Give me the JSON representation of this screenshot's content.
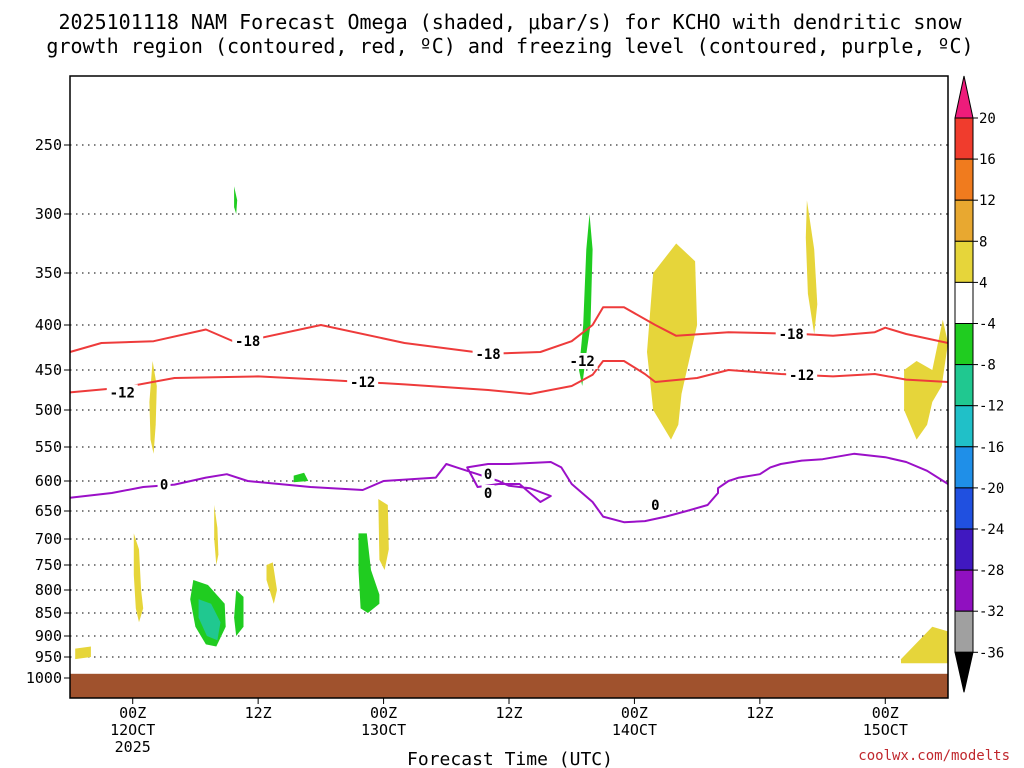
{
  "chart_data": {
    "type": "heatmap",
    "title_line1": "2025101118 NAM Forecast Omega (shaded, μbar/s) for KCHO with dendritic snow",
    "title_line2": "growth region (contoured, red, ºC) and freezing level (contoured, purple, ºC)",
    "xlabel": "Forecast Time (UTC)",
    "credit": "coolwx.com/modelts",
    "y_axis": {
      "unit": "hPa",
      "range": [
        1000,
        200
      ],
      "ticks": [
        250,
        300,
        350,
        400,
        450,
        500,
        550,
        600,
        650,
        700,
        750,
        800,
        850,
        900,
        950,
        1000
      ],
      "tick_labels": [
        "250",
        "300",
        "350",
        "400",
        "450",
        "500",
        "550",
        "600",
        "650",
        "700",
        "750",
        "800",
        "850",
        "900",
        "950",
        "1000"
      ]
    },
    "x_axis": {
      "unit": "forecast hour",
      "range": [
        0,
        84
      ],
      "ticks": [
        6,
        18,
        30,
        42,
        54,
        66,
        78
      ],
      "tick_labels": [
        [
          "00Z",
          "12OCT",
          "2025"
        ],
        [
          "12Z"
        ],
        [
          "00Z",
          "13OCT"
        ],
        [
          "12Z"
        ],
        [
          "00Z",
          "14OCT"
        ],
        [
          "12Z"
        ],
        [
          "00Z",
          "15OCT"
        ]
      ]
    },
    "colorbar": {
      "labels": [
        "20",
        "16",
        "12",
        "8",
        "4",
        "-4",
        "-8",
        "-12",
        "-16",
        "-20",
        "-24",
        "-28",
        "-32",
        "-36"
      ],
      "colors": [
        "#ee1c7b",
        "#f03c2d",
        "#f07b1e",
        "#e8a830",
        "#e6d53a",
        "#ffffff",
        "#20cc20",
        "#20c890",
        "#20c0c8",
        "#1f8fe8",
        "#2050e0",
        "#4018c0",
        "#9010c0",
        "#a0a0a0",
        "#000000"
      ]
    },
    "contours": [
      {
        "label": "-18",
        "color": "#ee3b3b",
        "kind": "dendritic",
        "points": [
          [
            0,
            430
          ],
          [
            3,
            420
          ],
          [
            8,
            418
          ],
          [
            13,
            405
          ],
          [
            16,
            420
          ],
          [
            24,
            400
          ],
          [
            32,
            420
          ],
          [
            40,
            432
          ],
          [
            45,
            430
          ],
          [
            48,
            418
          ],
          [
            50,
            400
          ],
          [
            51,
            383
          ],
          [
            53,
            383
          ],
          [
            56,
            400
          ],
          [
            58,
            412
          ],
          [
            63,
            408
          ],
          [
            70,
            410
          ],
          [
            73,
            412
          ],
          [
            77,
            408
          ],
          [
            78,
            403
          ],
          [
            80,
            410
          ],
          [
            84,
            420
          ]
        ],
        "label_at": [
          [
            17,
            418
          ],
          [
            40,
            432
          ],
          [
            69,
            410
          ]
        ]
      },
      {
        "label": "-12",
        "color": "#ee3b3b",
        "kind": "dendritic",
        "points": [
          [
            0,
            478
          ],
          [
            5,
            472
          ],
          [
            10,
            460
          ],
          [
            18,
            458
          ],
          [
            24,
            462
          ],
          [
            32,
            468
          ],
          [
            40,
            475
          ],
          [
            44,
            480
          ],
          [
            48,
            470
          ],
          [
            50,
            456
          ],
          [
            51,
            440
          ],
          [
            53,
            440
          ],
          [
            55,
            455
          ],
          [
            56,
            465
          ],
          [
            60,
            460
          ],
          [
            63,
            450
          ],
          [
            68,
            455
          ],
          [
            73,
            458
          ],
          [
            77,
            455
          ],
          [
            80,
            462
          ],
          [
            84,
            465
          ]
        ],
        "label_at": [
          [
            5,
            478
          ],
          [
            28,
            465
          ],
          [
            49,
            440
          ],
          [
            70,
            456
          ]
        ]
      },
      {
        "label": "0",
        "color": "#9b10c8",
        "kind": "freezing",
        "points": [
          [
            0,
            628
          ],
          [
            4,
            620
          ],
          [
            7,
            610
          ],
          [
            10,
            606
          ],
          [
            13,
            595
          ],
          [
            15,
            590
          ],
          [
            17,
            600
          ],
          [
            20,
            605
          ],
          [
            23,
            610
          ],
          [
            28,
            615
          ],
          [
            30,
            600
          ],
          [
            35,
            595
          ],
          [
            36,
            575
          ],
          [
            37,
            580
          ],
          [
            39,
            590
          ],
          [
            41,
            600
          ],
          [
            42,
            608
          ],
          [
            44,
            612
          ],
          [
            46,
            625
          ],
          [
            45,
            635
          ],
          [
            44,
            620
          ],
          [
            43,
            605
          ],
          [
            41,
            605
          ],
          [
            39,
            610
          ],
          [
            38,
            580
          ],
          [
            40,
            575
          ],
          [
            42,
            575
          ],
          [
            46,
            572
          ],
          [
            47,
            580
          ],
          [
            48,
            605
          ],
          [
            50,
            635
          ],
          [
            51,
            660
          ],
          [
            53,
            670
          ],
          [
            55,
            668
          ],
          [
            57,
            660
          ],
          [
            59,
            650
          ],
          [
            61,
            640
          ],
          [
            62,
            620
          ],
          [
            62,
            612
          ],
          [
            63,
            600
          ],
          [
            64,
            595
          ],
          [
            66,
            590
          ],
          [
            67,
            580
          ],
          [
            68,
            575
          ],
          [
            70,
            570
          ],
          [
            72,
            568
          ],
          [
            75,
            560
          ],
          [
            78,
            565
          ],
          [
            80,
            572
          ],
          [
            82,
            585
          ],
          [
            84,
            605
          ]
        ],
        "label_at": [
          [
            9,
            606
          ],
          [
            40,
            590
          ],
          [
            40,
            620
          ],
          [
            56,
            640
          ]
        ]
      }
    ],
    "shaded_regions": [
      {
        "sign": "positive",
        "level": "4 to 8",
        "color": "#e6d53a",
        "points": [
          [
            7.9,
            440
          ],
          [
            8.3,
            470
          ],
          [
            8.2,
            520
          ],
          [
            8.0,
            560
          ],
          [
            7.7,
            540
          ],
          [
            7.6,
            490
          ]
        ]
      },
      {
        "sign": "positive",
        "level": "4 to 8",
        "color": "#e6d53a",
        "points": [
          [
            6.1,
            690
          ],
          [
            6.6,
            720
          ],
          [
            6.8,
            800
          ],
          [
            7.0,
            840
          ],
          [
            6.6,
            870
          ],
          [
            6.3,
            840
          ],
          [
            6.1,
            770
          ]
        ]
      },
      {
        "sign": "positive",
        "level": "4 to 8",
        "color": "#e6d53a",
        "points": [
          [
            0.5,
            930
          ],
          [
            2.0,
            925
          ],
          [
            2.0,
            950
          ],
          [
            0.5,
            955
          ]
        ]
      },
      {
        "sign": "positive",
        "level": "4 to 8",
        "color": "#e6d53a",
        "points": [
          [
            13.8,
            640
          ],
          [
            14.1,
            680
          ],
          [
            14.2,
            730
          ],
          [
            14.0,
            750
          ],
          [
            13.8,
            700
          ]
        ]
      },
      {
        "sign": "positive",
        "level": "4 to 8",
        "color": "#e6d53a",
        "points": [
          [
            18.8,
            750
          ],
          [
            19.4,
            745
          ],
          [
            19.8,
            800
          ],
          [
            19.5,
            830
          ],
          [
            18.8,
            780
          ]
        ]
      },
      {
        "sign": "positive",
        "level": "4 to 8",
        "color": "#e6d53a",
        "points": [
          [
            29.5,
            630
          ],
          [
            30.4,
            640
          ],
          [
            30.5,
            720
          ],
          [
            30.1,
            760
          ],
          [
            29.6,
            740
          ]
        ]
      },
      {
        "sign": "positive",
        "level": "4 to 8",
        "color": "#e6d53a",
        "points": [
          [
            55.8,
            350
          ],
          [
            58.0,
            325
          ],
          [
            59.8,
            340
          ],
          [
            60.0,
            400
          ],
          [
            58.5,
            480
          ],
          [
            58.2,
            520
          ],
          [
            57.5,
            540
          ],
          [
            55.8,
            500
          ],
          [
            55.2,
            430
          ]
        ]
      },
      {
        "sign": "positive",
        "level": "4 to 8",
        "color": "#e6d53a",
        "points": [
          [
            70.5,
            290
          ],
          [
            71.2,
            330
          ],
          [
            71.5,
            380
          ],
          [
            71.2,
            410
          ],
          [
            70.6,
            370
          ],
          [
            70.4,
            320
          ]
        ]
      },
      {
        "sign": "positive",
        "level": "4 to 8",
        "color": "#e6d53a",
        "points": [
          [
            79.8,
            450
          ],
          [
            81.0,
            440
          ],
          [
            82.5,
            450
          ],
          [
            83.5,
            395
          ],
          [
            84.0,
            420
          ],
          [
            83.4,
            470
          ],
          [
            82.5,
            490
          ],
          [
            82.0,
            520
          ],
          [
            81.0,
            540
          ],
          [
            79.8,
            500
          ]
        ]
      },
      {
        "sign": "positive",
        "level": "4 to 8",
        "color": "#e6d53a",
        "points": [
          [
            79.5,
            955
          ],
          [
            82.5,
            880
          ],
          [
            84,
            890
          ],
          [
            84,
            965
          ],
          [
            79.5,
            965
          ]
        ]
      },
      {
        "sign": "negative",
        "level": "-4 to -8",
        "color": "#20cc20",
        "points": [
          [
            15.7,
            280
          ],
          [
            16.0,
            290
          ],
          [
            15.9,
            300
          ],
          [
            15.7,
            295
          ]
        ]
      },
      {
        "sign": "negative",
        "level": "-4 to -8",
        "color": "#20cc20",
        "points": [
          [
            21.4,
            592
          ],
          [
            22.4,
            588
          ],
          [
            22.8,
            600
          ],
          [
            21.4,
            602
          ]
        ]
      },
      {
        "sign": "negative",
        "level": "-4 to -8",
        "color": "#20cc20",
        "points": [
          [
            11.8,
            780
          ],
          [
            13.2,
            790
          ],
          [
            14.8,
            830
          ],
          [
            14.9,
            880
          ],
          [
            14.0,
            925
          ],
          [
            13.0,
            920
          ],
          [
            12.0,
            880
          ],
          [
            11.5,
            820
          ]
        ]
      },
      {
        "sign": "negative",
        "level": "-4 to -8",
        "color": "#20cc20",
        "points": [
          [
            15.9,
            800
          ],
          [
            16.6,
            815
          ],
          [
            16.6,
            880
          ],
          [
            15.9,
            900
          ],
          [
            15.7,
            860
          ]
        ]
      },
      {
        "sign": "negative",
        "level": "-4 to -8",
        "color": "#20cc20",
        "points": [
          [
            27.6,
            690
          ],
          [
            28.4,
            690
          ],
          [
            28.8,
            760
          ],
          [
            29.6,
            810
          ],
          [
            29.6,
            830
          ],
          [
            28.5,
            850
          ],
          [
            27.8,
            840
          ],
          [
            27.6,
            760
          ]
        ]
      },
      {
        "sign": "negative",
        "level": "-4 to -8",
        "color": "#20cc20",
        "points": [
          [
            48.7,
            450
          ],
          [
            49.1,
            400
          ],
          [
            49.4,
            330
          ],
          [
            49.7,
            300
          ],
          [
            50.0,
            330
          ],
          [
            49.8,
            400
          ],
          [
            49.3,
            440
          ],
          [
            49.0,
            470
          ]
        ]
      },
      {
        "sign": "negative",
        "level": "-8 to -12",
        "color": "#20c890",
        "points": [
          [
            12.3,
            820
          ],
          [
            13.5,
            830
          ],
          [
            14.4,
            870
          ],
          [
            14.1,
            910
          ],
          [
            13.1,
            900
          ],
          [
            12.3,
            860
          ]
        ]
      }
    ],
    "terrain": {
      "color": "#a0522d",
      "pressure_hpa": 990
    }
  }
}
